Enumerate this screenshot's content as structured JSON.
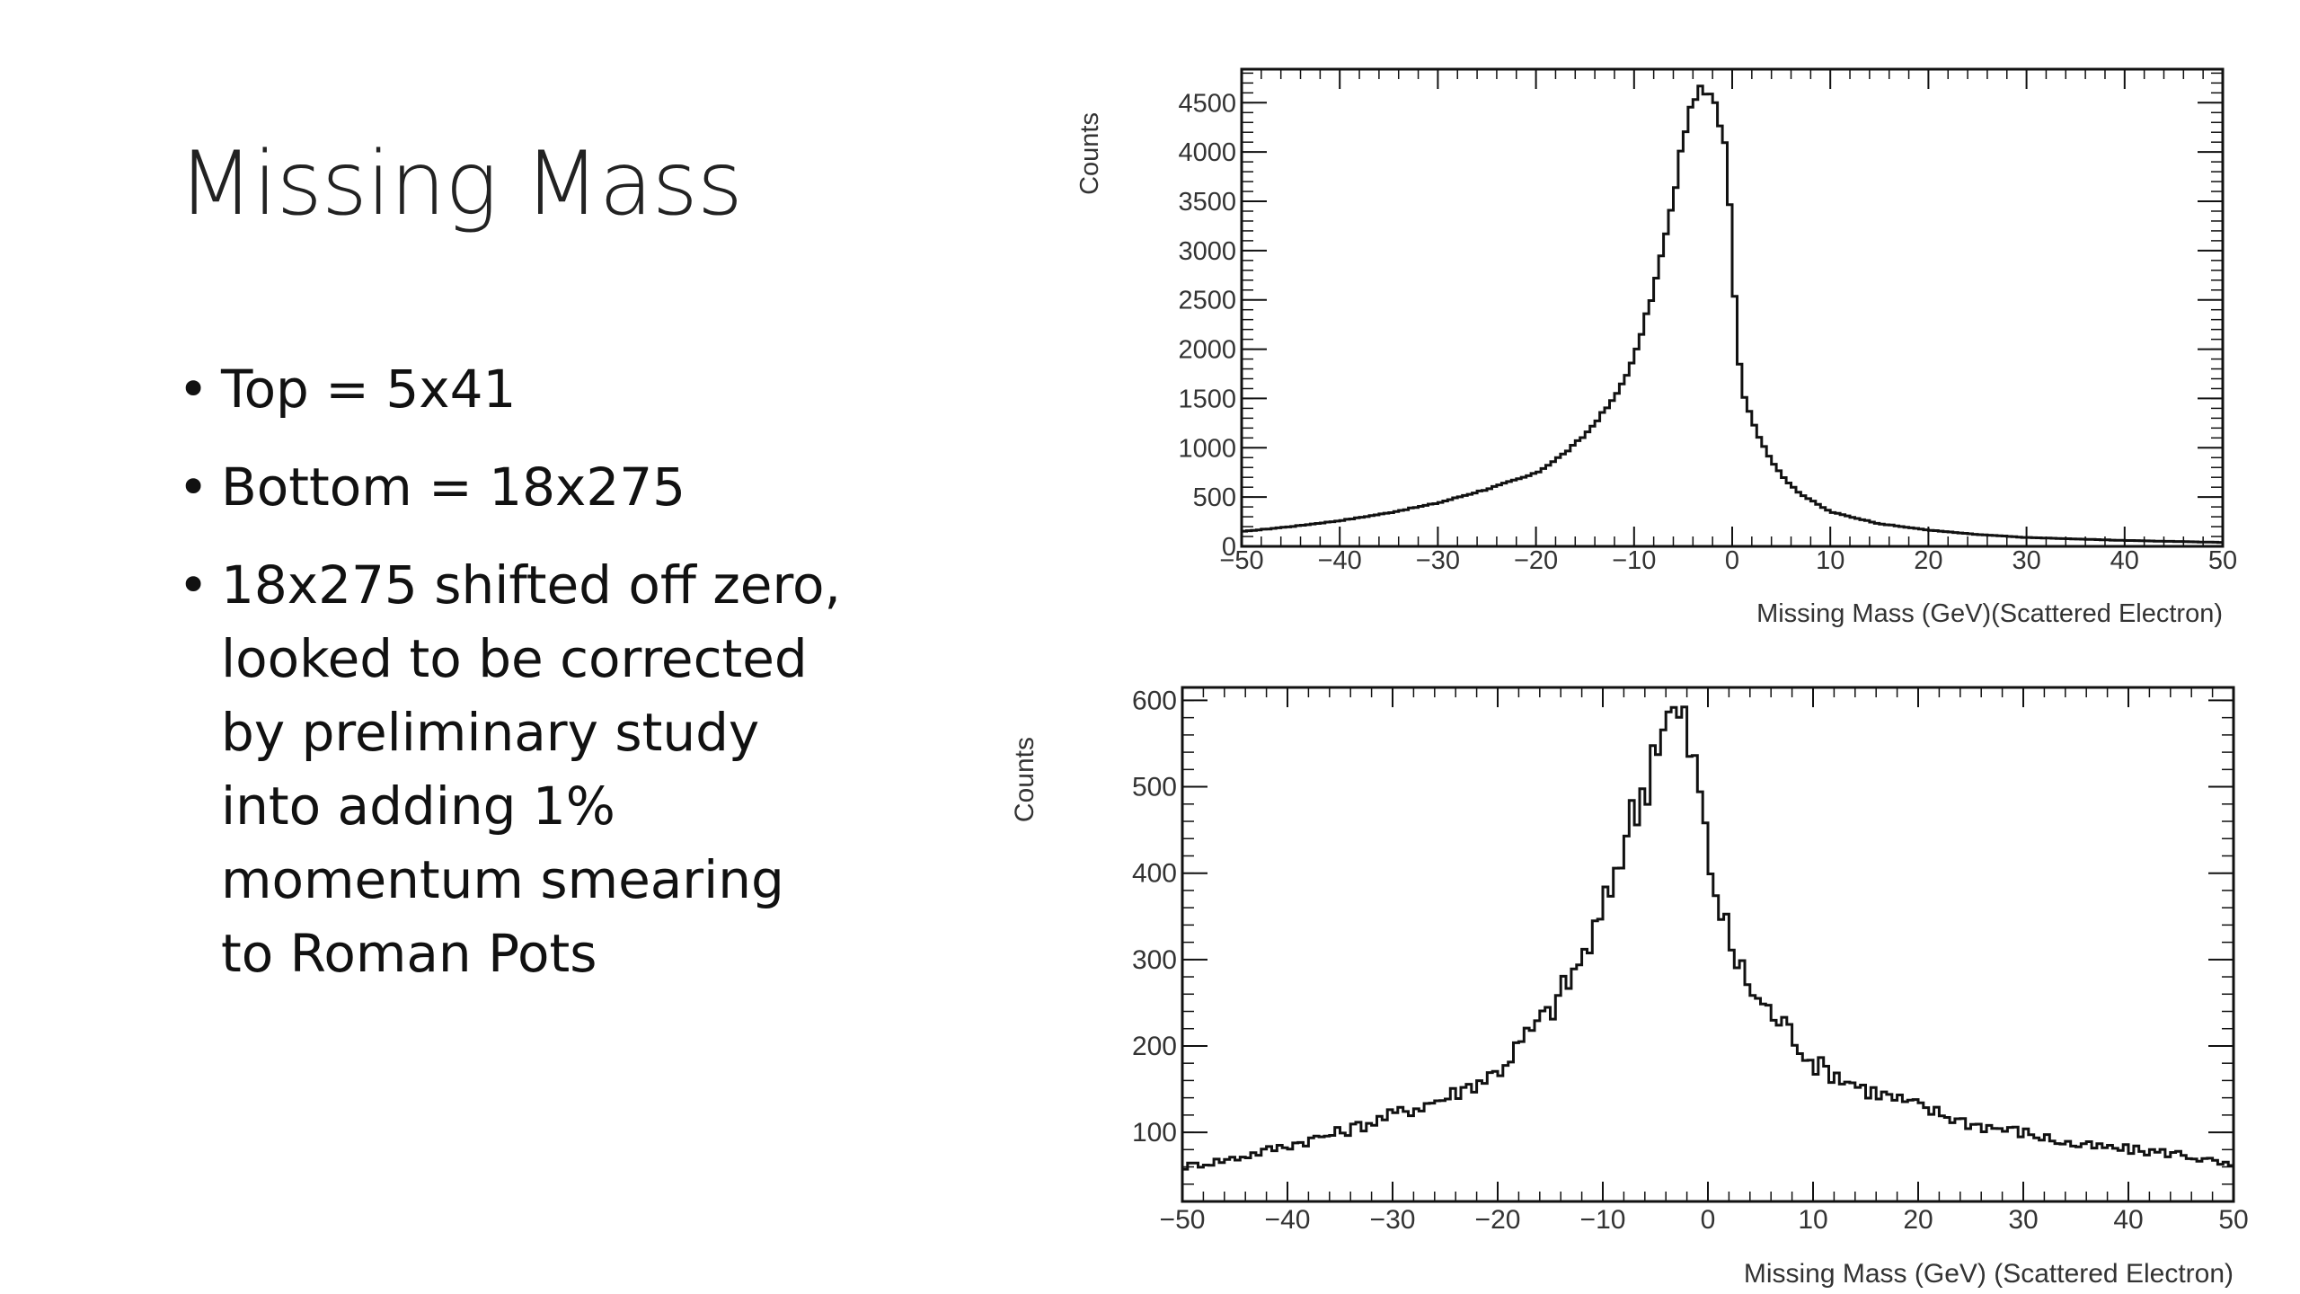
{
  "slide": {
    "title": "Missing Mass",
    "bullets": [
      "Top = 5x41",
      "Bottom = 18x275",
      "18x275 shifted off zero,\nlooked to be corrected\nby preliminary study\ninto adding 1%\nmomentum smearing\nto Roman Pots"
    ]
  },
  "chart_data": [
    {
      "type": "histogram",
      "xlabel": "Missing Mass (GeV)(Scattered Electron)",
      "ylabel": "Counts",
      "xlim": [
        -50,
        50
      ],
      "ylim": [
        0,
        4840
      ],
      "x_ticks": [
        -50,
        -40,
        -30,
        -20,
        -10,
        0,
        10,
        20,
        30,
        40,
        50
      ],
      "y_ticks": [
        0,
        500,
        1000,
        1500,
        2000,
        2500,
        3000,
        3500,
        4000,
        4500
      ],
      "grid": false,
      "bin_width": 0.5,
      "shape_points": [
        [
          -50,
          150
        ],
        [
          -45,
          200
        ],
        [
          -40,
          260
        ],
        [
          -35,
          340
        ],
        [
          -30,
          440
        ],
        [
          -25,
          580
        ],
        [
          -20,
          740
        ],
        [
          -17,
          950
        ],
        [
          -15,
          1130
        ],
        [
          -12,
          1500
        ],
        [
          -10,
          1900
        ],
        [
          -8,
          2600
        ],
        [
          -6,
          3500
        ],
        [
          -5,
          4150
        ],
        [
          -4,
          4500
        ],
        [
          -3.5,
          4650
        ],
        [
          -3,
          4600
        ],
        [
          -2,
          4550
        ],
        [
          -1.5,
          4400
        ],
        [
          -0.5,
          4000
        ],
        [
          0,
          3000
        ],
        [
          0.5,
          2100
        ],
        [
          1,
          1600
        ],
        [
          2,
          1300
        ],
        [
          3,
          1050
        ],
        [
          4,
          880
        ],
        [
          5,
          720
        ],
        [
          7,
          530
        ],
        [
          10,
          350
        ],
        [
          15,
          230
        ],
        [
          20,
          165
        ],
        [
          25,
          120
        ],
        [
          30,
          90
        ],
        [
          40,
          60
        ],
        [
          50,
          40
        ]
      ],
      "noise_amplitude": 0.01
    },
    {
      "type": "histogram",
      "xlabel": "Missing Mass (GeV) (Scattered Electron)",
      "ylabel": "Counts",
      "xlim": [
        -50,
        50
      ],
      "ylim": [
        20,
        615
      ],
      "x_ticks": [
        -50,
        -40,
        -30,
        -20,
        -10,
        0,
        10,
        20,
        30,
        40,
        50
      ],
      "y_ticks": [
        100,
        200,
        300,
        400,
        500,
        600
      ],
      "grid": false,
      "bin_width": 0.5,
      "shape_points": [
        [
          -50,
          60
        ],
        [
          -45,
          70
        ],
        [
          -40,
          85
        ],
        [
          -35,
          100
        ],
        [
          -30,
          120
        ],
        [
          -25,
          140
        ],
        [
          -20,
          170
        ],
        [
          -17,
          215
        ],
        [
          -15,
          240
        ],
        [
          -12,
          300
        ],
        [
          -10,
          350
        ],
        [
          -8,
          440
        ],
        [
          -6,
          500
        ],
        [
          -5,
          560
        ],
        [
          -4,
          575
        ],
        [
          -3,
          585
        ],
        [
          -2,
          560
        ],
        [
          -1,
          510
        ],
        [
          0,
          420
        ],
        [
          1,
          370
        ],
        [
          2,
          320
        ],
        [
          3,
          290
        ],
        [
          5,
          250
        ],
        [
          8,
          215
        ],
        [
          10,
          180
        ],
        [
          15,
          150
        ],
        [
          20,
          130
        ],
        [
          25,
          110
        ],
        [
          30,
          100
        ],
        [
          35,
          85
        ],
        [
          40,
          80
        ],
        [
          45,
          75
        ],
        [
          50,
          60
        ]
      ],
      "noise_amplitude": 0.07
    }
  ]
}
